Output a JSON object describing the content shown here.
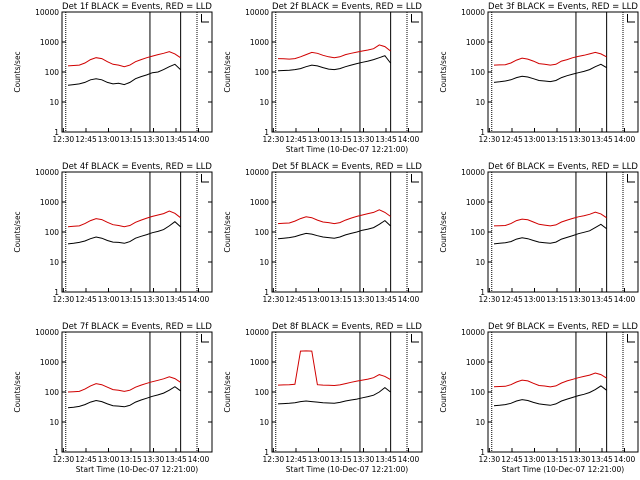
{
  "chart_data": [
    {
      "type": "line",
      "title": "Det 1f BLACK = Events, RED = LLD",
      "ylabel": "Counts/sec",
      "xlabel": "",
      "x_ticks": [
        "12:30",
        "12:45",
        "13:00",
        "13:15",
        "13:30",
        "13:45",
        "14:00"
      ],
      "y_ticks": [
        "1",
        "10",
        "100",
        "1000",
        "10000"
      ],
      "ylim": [
        1,
        10000
      ],
      "yscale": "log",
      "series": [
        {
          "name": "",
          "color": "#000000",
          "values": [
            36,
            38,
            40,
            45,
            55,
            60,
            55,
            45,
            40,
            42,
            38,
            45,
            60,
            70,
            80,
            95,
            100,
            120,
            150,
            180,
            120
          ]
        },
        {
          "name": "",
          "color": "#d00000",
          "values": [
            160,
            165,
            170,
            200,
            260,
            300,
            280,
            220,
            180,
            170,
            150,
            170,
            220,
            260,
            300,
            340,
            380,
            420,
            480,
            400,
            300
          ]
        }
      ]
    },
    {
      "type": "line",
      "title": "Det 2f BLACK = Events, RED = LLD",
      "ylabel": "Counts/sec",
      "xlabel": "Start Time (10-Dec-07 12:21:00)",
      "x_ticks": [
        "12:30",
        "12:45",
        "13:00",
        "13:15",
        "13:30",
        "13:45",
        "14:00"
      ],
      "y_ticks": [
        "1",
        "10",
        "100",
        "1000",
        "10000"
      ],
      "ylim": [
        1,
        10000
      ],
      "yscale": "log",
      "series": [
        {
          "name": "",
          "color": "#000000",
          "values": [
            110,
            112,
            115,
            120,
            130,
            150,
            170,
            160,
            140,
            125,
            120,
            130,
            150,
            170,
            190,
            210,
            230,
            260,
            300,
            350,
            200
          ]
        },
        {
          "name": "",
          "color": "#d00000",
          "values": [
            280,
            275,
            270,
            280,
            320,
            380,
            450,
            420,
            360,
            320,
            300,
            320,
            380,
            420,
            460,
            500,
            540,
            600,
            800,
            700,
            500
          ]
        }
      ]
    },
    {
      "type": "line",
      "title": "Det 3f BLACK = Events, RED = LLD",
      "ylabel": "Counts/sec",
      "xlabel": "",
      "x_ticks": [
        "12:30",
        "12:45",
        "13:00",
        "13:15",
        "13:30",
        "13:45",
        "14:00"
      ],
      "y_ticks": [
        "1",
        "10",
        "100",
        "1000",
        "10000"
      ],
      "ylim": [
        1,
        10000
      ],
      "yscale": "log",
      "series": [
        {
          "name": "",
          "color": "#000000",
          "values": [
            45,
            47,
            50,
            55,
            65,
            72,
            68,
            60,
            52,
            50,
            48,
            52,
            65,
            75,
            85,
            95,
            105,
            120,
            150,
            180,
            140
          ]
        },
        {
          "name": "",
          "color": "#d00000",
          "values": [
            170,
            172,
            175,
            200,
            250,
            290,
            270,
            230,
            190,
            180,
            170,
            180,
            230,
            260,
            300,
            330,
            360,
            400,
            450,
            400,
            320
          ]
        }
      ]
    },
    {
      "type": "line",
      "title": "Det 4f BLACK = Events, RED = LLD",
      "ylabel": "Counts/sec",
      "xlabel": "",
      "x_ticks": [
        "12:30",
        "12:45",
        "13:00",
        "13:15",
        "13:30",
        "13:45",
        "14:00"
      ],
      "y_ticks": [
        "1",
        "10",
        "100",
        "1000",
        "10000"
      ],
      "ylim": [
        1,
        10000
      ],
      "yscale": "log",
      "series": [
        {
          "name": "",
          "color": "#000000",
          "values": [
            40,
            42,
            45,
            50,
            60,
            68,
            62,
            52,
            46,
            45,
            42,
            48,
            62,
            72,
            82,
            95,
            105,
            120,
            160,
            220,
            150
          ]
        },
        {
          "name": "",
          "color": "#d00000",
          "values": [
            150,
            155,
            160,
            190,
            240,
            280,
            260,
            210,
            175,
            165,
            150,
            165,
            210,
            250,
            290,
            330,
            370,
            410,
            500,
            420,
            300
          ]
        }
      ]
    },
    {
      "type": "line",
      "title": "Det 5f BLACK = Events, RED = LLD",
      "ylabel": "Counts/sec",
      "xlabel": "",
      "x_ticks": [
        "12:30",
        "12:45",
        "13:00",
        "13:15",
        "13:30",
        "13:45",
        "14:00"
      ],
      "y_ticks": [
        "1",
        "10",
        "100",
        "1000",
        "10000"
      ],
      "ylim": [
        1,
        10000
      ],
      "yscale": "log",
      "series": [
        {
          "name": "",
          "color": "#000000",
          "values": [
            60,
            62,
            65,
            70,
            80,
            90,
            85,
            75,
            68,
            65,
            62,
            68,
            80,
            90,
            100,
            115,
            125,
            140,
            180,
            240,
            160
          ]
        },
        {
          "name": "",
          "color": "#d00000",
          "values": [
            190,
            195,
            200,
            230,
            280,
            320,
            300,
            250,
            215,
            205,
            190,
            205,
            250,
            290,
            330,
            370,
            410,
            450,
            550,
            450,
            330
          ]
        }
      ]
    },
    {
      "type": "line",
      "title": "Det 6f BLACK = Events, RED = LLD",
      "ylabel": "Counts/sec",
      "xlabel": "",
      "x_ticks": [
        "12:30",
        "12:45",
        "13:00",
        "13:15",
        "13:30",
        "13:45",
        "14:00"
      ],
      "y_ticks": [
        "1",
        "10",
        "100",
        "1000",
        "10000"
      ],
      "ylim": [
        1,
        10000
      ],
      "yscale": "log",
      "series": [
        {
          "name": "",
          "color": "#000000",
          "values": [
            40,
            42,
            44,
            48,
            58,
            64,
            60,
            52,
            46,
            44,
            42,
            46,
            58,
            66,
            76,
            88,
            98,
            110,
            140,
            180,
            130
          ]
        },
        {
          "name": "",
          "color": "#d00000",
          "values": [
            160,
            162,
            165,
            190,
            240,
            270,
            255,
            215,
            180,
            170,
            160,
            172,
            215,
            250,
            285,
            320,
            350,
            390,
            460,
            400,
            300
          ]
        }
      ]
    },
    {
      "type": "line",
      "title": "Det 7f BLACK = Events, RED = LLD",
      "ylabel": "Counts/sec",
      "xlabel": "Start Time (10-Dec-07 12:21:00)",
      "x_ticks": [
        "12:30",
        "12:45",
        "13:00",
        "13:15",
        "13:30",
        "13:45",
        "14:00"
      ],
      "y_ticks": [
        "1",
        "10",
        "100",
        "1000",
        "10000"
      ],
      "ylim": [
        1,
        10000
      ],
      "yscale": "log",
      "series": [
        {
          "name": "",
          "color": "#000000",
          "values": [
            30,
            31,
            33,
            38,
            46,
            52,
            48,
            40,
            35,
            34,
            32,
            36,
            46,
            54,
            62,
            72,
            80,
            92,
            115,
            150,
            110
          ]
        },
        {
          "name": "",
          "color": "#d00000",
          "values": [
            100,
            102,
            105,
            125,
            160,
            190,
            175,
            145,
            120,
            115,
            105,
            115,
            145,
            170,
            195,
            220,
            245,
            275,
            320,
            280,
            210
          ]
        }
      ]
    },
    {
      "type": "line",
      "title": "Det 8f BLACK = Events, RED = LLD",
      "ylabel": "Counts/sec",
      "xlabel": "Start Time (10-Dec-07 12:21:00)",
      "x_ticks": [
        "12:30",
        "12:45",
        "13:00",
        "13:15",
        "13:30",
        "13:45",
        "14:00"
      ],
      "y_ticks": [
        "1",
        "10",
        "100",
        "1000",
        "10000"
      ],
      "ylim": [
        1,
        10000
      ],
      "yscale": "log",
      "series": [
        {
          "name": "",
          "color": "#000000",
          "values": [
            40,
            41,
            42,
            44,
            48,
            50,
            48,
            46,
            44,
            43,
            42,
            45,
            50,
            54,
            58,
            64,
            70,
            78,
            100,
            140,
            100
          ]
        },
        {
          "name": "",
          "color": "#d00000",
          "values": [
            170,
            172,
            175,
            180,
            2300,
            2350,
            2300,
            175,
            170,
            168,
            165,
            172,
            190,
            210,
            230,
            250,
            270,
            300,
            380,
            330,
            260
          ]
        }
      ]
    },
    {
      "type": "line",
      "title": "Det 9f BLACK = Events, RED = LLD",
      "ylabel": "Counts/sec",
      "xlabel": "Start Time (10-Dec-07 12:21:00)",
      "x_ticks": [
        "12:30",
        "12:45",
        "13:00",
        "13:15",
        "13:30",
        "13:45",
        "14:00"
      ],
      "y_ticks": [
        "1",
        "10",
        "100",
        "1000",
        "10000"
      ],
      "ylim": [
        1,
        10000
      ],
      "yscale": "log",
      "series": [
        {
          "name": "",
          "color": "#000000",
          "values": [
            35,
            36,
            38,
            42,
            50,
            56,
            52,
            45,
            40,
            38,
            36,
            40,
            50,
            58,
            66,
            76,
            84,
            96,
            120,
            160,
            115
          ]
        },
        {
          "name": "",
          "color": "#d00000",
          "values": [
            150,
            152,
            155,
            175,
            215,
            250,
            235,
            195,
            165,
            158,
            148,
            160,
            200,
            235,
            265,
            300,
            330,
            365,
            430,
            380,
            290
          ]
        }
      ]
    }
  ]
}
